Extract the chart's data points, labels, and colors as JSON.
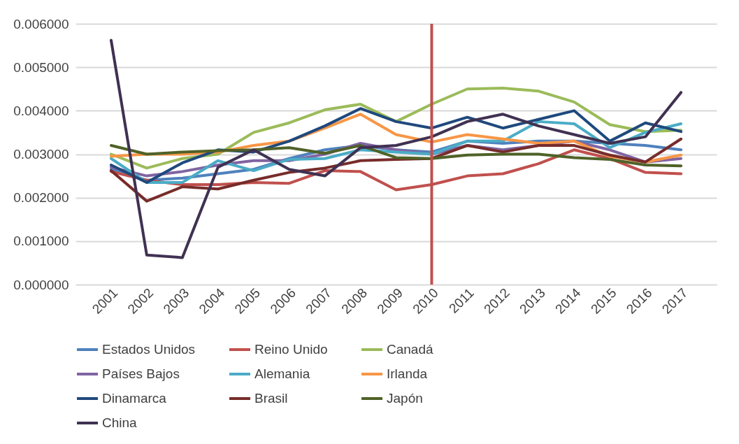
{
  "chart_data": {
    "type": "line",
    "categories": [
      "2001",
      "2002",
      "2003",
      "2004",
      "2005",
      "2006",
      "2007",
      "2008",
      "2009",
      "2010",
      "2011",
      "2012",
      "2013",
      "2014",
      "2015",
      "2016",
      "2017"
    ],
    "series": [
      {
        "name": "Estados Unidos",
        "color": "#4f81bd",
        "values": [
          0.00265,
          0.0024,
          0.00245,
          0.00255,
          0.00265,
          0.0029,
          0.0031,
          0.0032,
          0.0031,
          0.00305,
          0.0033,
          0.00325,
          0.0033,
          0.0033,
          0.00325,
          0.0032,
          0.0031
        ]
      },
      {
        "name": "Reino Unido",
        "color": "#c0504d",
        "values": [
          0.0026,
          0.0024,
          0.0023,
          0.0023,
          0.00235,
          0.00233,
          0.00262,
          0.0026,
          0.00218,
          0.0023,
          0.0025,
          0.00255,
          0.00278,
          0.0031,
          0.0029,
          0.00258,
          0.00255
        ]
      },
      {
        "name": "Canadá",
        "color": "#9bbb59",
        "values": [
          0.003,
          0.00268,
          0.0029,
          0.003,
          0.0035,
          0.00372,
          0.00402,
          0.00415,
          0.00375,
          0.00415,
          0.0045,
          0.00452,
          0.00445,
          0.0042,
          0.00368,
          0.00352,
          0.00355
        ]
      },
      {
        "name": "Países Bajos",
        "color": "#8064a2",
        "values": [
          0.0027,
          0.0025,
          0.0026,
          0.00275,
          0.00285,
          0.00285,
          0.003,
          0.00325,
          0.0031,
          0.003,
          0.0032,
          0.0031,
          0.0032,
          0.0033,
          0.0031,
          0.00282,
          0.0029
        ]
      },
      {
        "name": "Alemania",
        "color": "#4bacc6",
        "values": [
          0.0029,
          0.00235,
          0.00235,
          0.00285,
          0.00262,
          0.00288,
          0.0029,
          0.0031,
          0.00305,
          0.003,
          0.0033,
          0.0033,
          0.00375,
          0.0037,
          0.00315,
          0.0035,
          0.0037
        ]
      },
      {
        "name": "Irlanda",
        "color": "#f79646",
        "values": [
          0.00295,
          0.003,
          0.003,
          0.00305,
          0.0032,
          0.0033,
          0.0036,
          0.00392,
          0.00345,
          0.00328,
          0.00345,
          0.00335,
          0.00325,
          0.0033,
          0.00295,
          0.00282,
          0.00298
        ]
      },
      {
        "name": "Dinamarca",
        "color": "#1f497d",
        "values": [
          0.00275,
          0.00235,
          0.0028,
          0.0031,
          0.00305,
          0.0033,
          0.00365,
          0.00405,
          0.00375,
          0.0036,
          0.00385,
          0.0036,
          0.0038,
          0.004,
          0.0033,
          0.00372,
          0.00352
        ]
      },
      {
        "name": "Brasil",
        "color": "#772c2a",
        "values": [
          0.00262,
          0.00192,
          0.00225,
          0.0022,
          0.0024,
          0.00258,
          0.00268,
          0.00285,
          0.00288,
          0.0029,
          0.0032,
          0.00305,
          0.0032,
          0.0032,
          0.00298,
          0.00282,
          0.00335
        ]
      },
      {
        "name": "Japón",
        "color": "#4f6228",
        "values": [
          0.0032,
          0.003,
          0.00305,
          0.00308,
          0.0031,
          0.00315,
          0.00302,
          0.0032,
          0.00292,
          0.0029,
          0.00298,
          0.003,
          0.003,
          0.00292,
          0.00288,
          0.00275,
          0.00273
        ]
      },
      {
        "name": "China",
        "color": "#403152",
        "values": [
          0.00562,
          0.00068,
          0.00062,
          0.0027,
          0.0031,
          0.00265,
          0.0025,
          0.00315,
          0.0032,
          0.0034,
          0.00375,
          0.00392,
          0.00365,
          0.00345,
          0.00325,
          0.0034,
          0.00442
        ]
      }
    ],
    "ylim": [
      0,
      0.006
    ],
    "yticks": [
      {
        "value": 0,
        "label": "0.000000"
      },
      {
        "value": 0.001,
        "label": "0.001000"
      },
      {
        "value": 0.002,
        "label": "0.002000"
      },
      {
        "value": 0.003,
        "label": "0.003000"
      },
      {
        "value": 0.004,
        "label": "0.004000"
      },
      {
        "value": 0.005,
        "label": "0.005000"
      },
      {
        "value": 0.006,
        "label": "0.006000"
      }
    ],
    "grid": "y",
    "legend": "bottom",
    "marker": "none",
    "line_style": "solid",
    "ref_lines": [
      {
        "axis": "x",
        "value": "2010",
        "color": "#c0504d"
      }
    ]
  }
}
